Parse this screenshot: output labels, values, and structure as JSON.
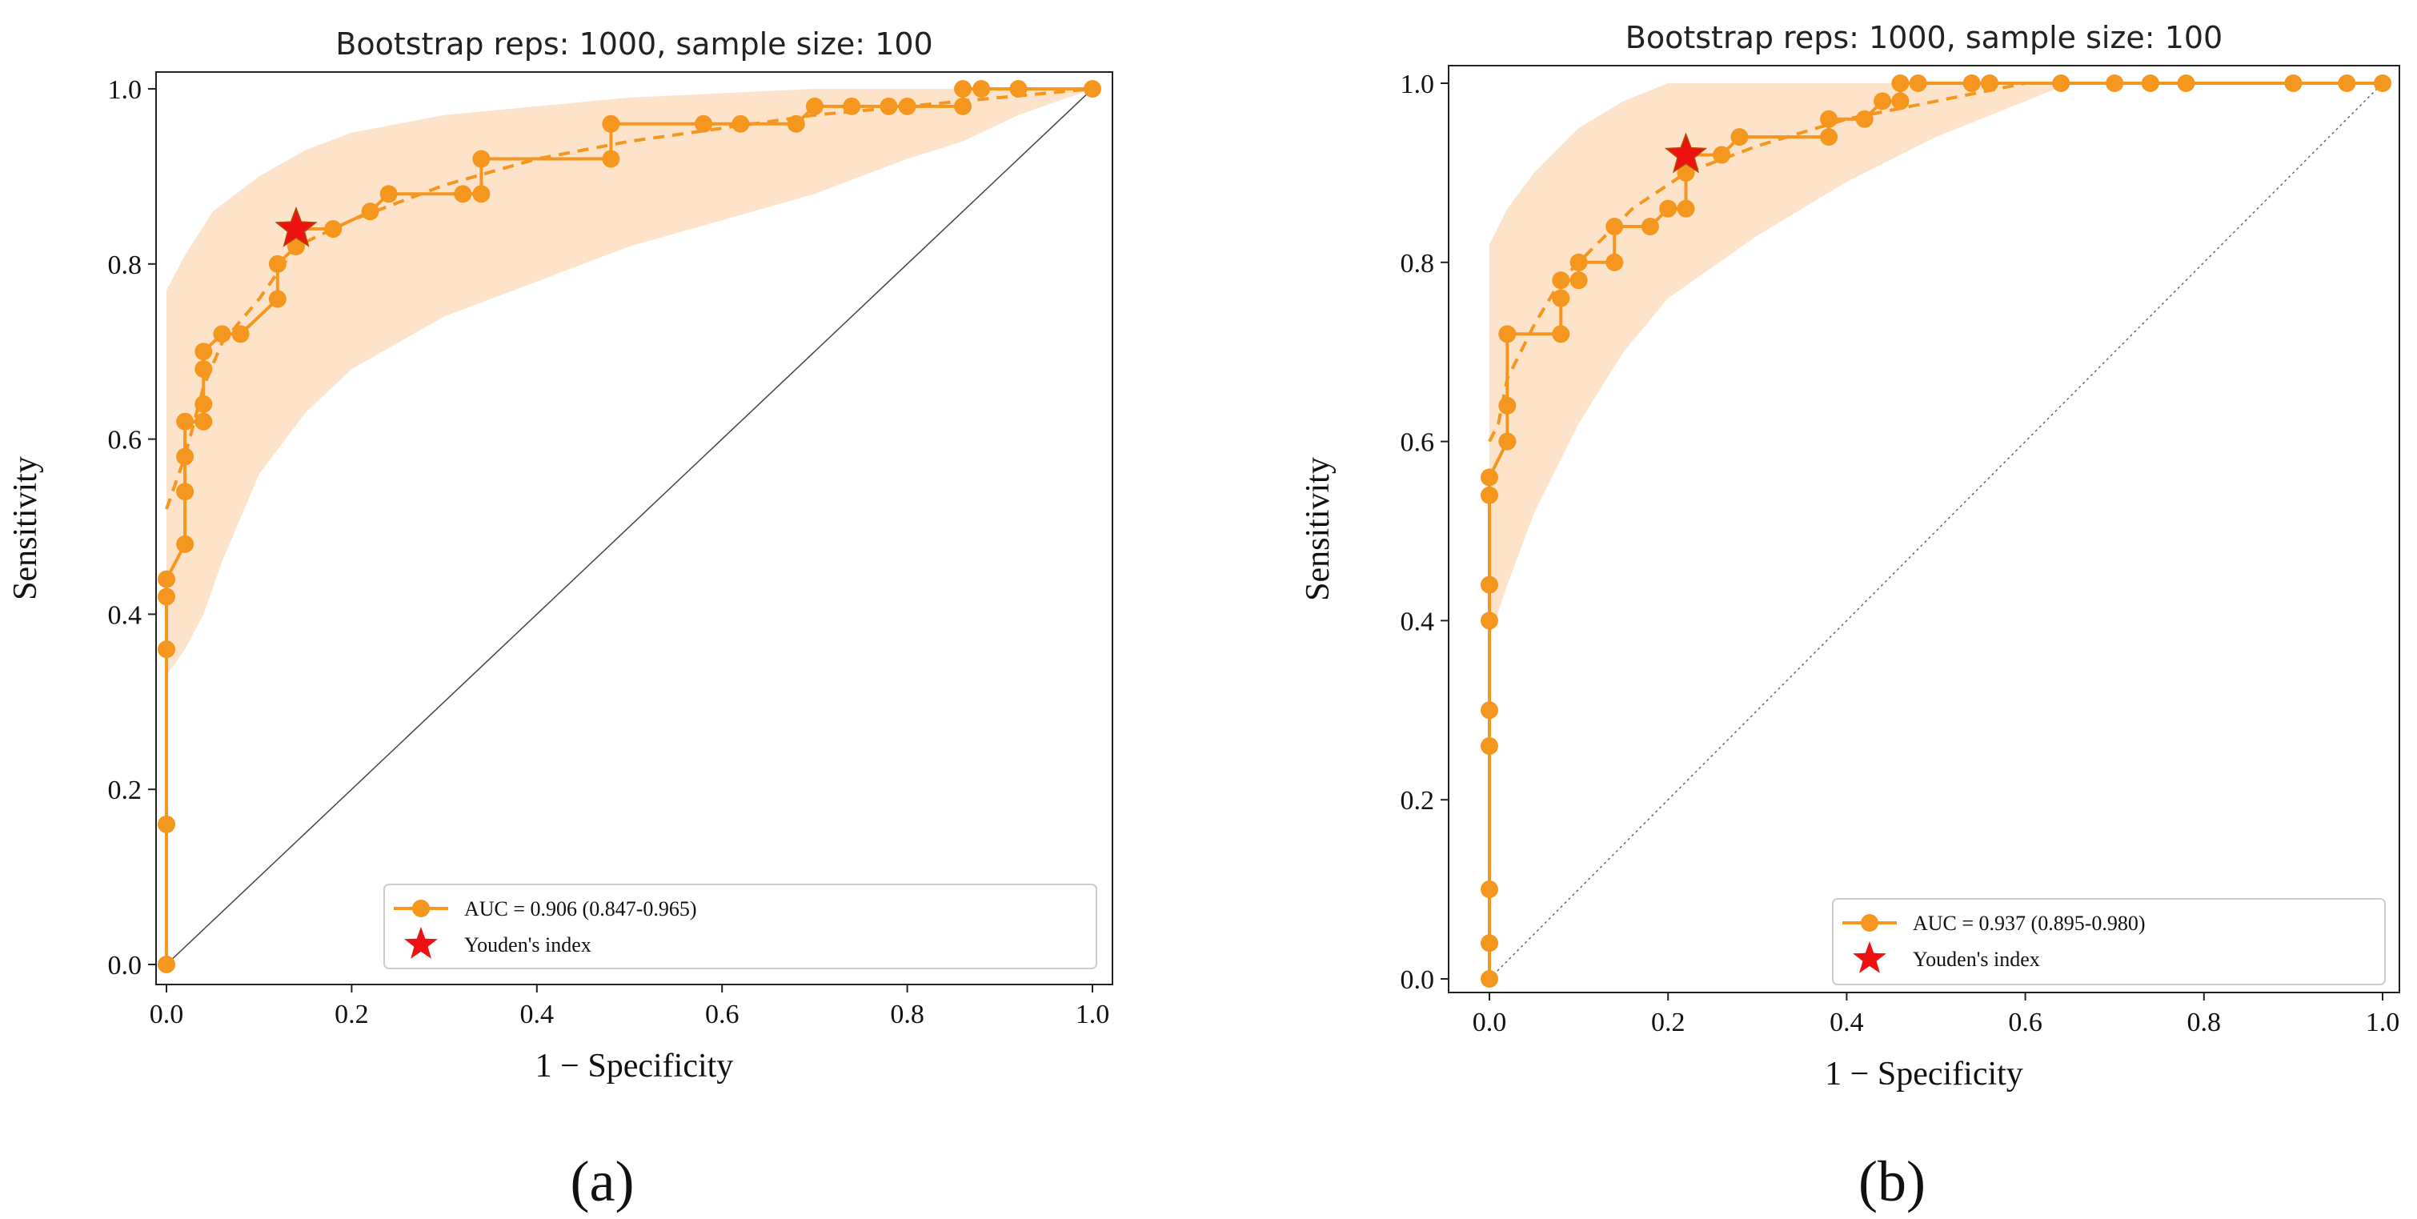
{
  "chart_data": [
    {
      "panel": "(a)",
      "type": "line",
      "title": "Bootstrap reps: 1000, sample size: 100",
      "xlabel": "1 − Specificity",
      "ylabel": "Sensitivity",
      "xlim": [
        0,
        1
      ],
      "ylim": [
        0,
        1
      ],
      "xticks": [
        "0.0",
        "0.2",
        "0.4",
        "0.6",
        "0.8",
        "1.0"
      ],
      "yticks": [
        "0.0",
        "0.2",
        "0.4",
        "0.6",
        "0.8",
        "1.0"
      ],
      "grid": false,
      "legend_position": "bottom-right",
      "legend": {
        "auc_label": "AUC = 0.906 (0.847-0.965)",
        "youden_label": "Youden's index"
      },
      "colors": {
        "line": "#f5961e",
        "band": "#fbdcbc",
        "star": "#ee1111",
        "diagonal": "#444444"
      },
      "roc_points": [
        [
          0,
          0
        ],
        [
          0,
          0.16
        ],
        [
          0,
          0.36
        ],
        [
          0,
          0.42
        ],
        [
          0,
          0.44
        ],
        [
          0.02,
          0.48
        ],
        [
          0.02,
          0.54
        ],
        [
          0.02,
          0.58
        ],
        [
          0.02,
          0.62
        ],
        [
          0.04,
          0.62
        ],
        [
          0.04,
          0.64
        ],
        [
          0.04,
          0.68
        ],
        [
          0.04,
          0.7
        ],
        [
          0.06,
          0.72
        ],
        [
          0.08,
          0.72
        ],
        [
          0.12,
          0.76
        ],
        [
          0.12,
          0.8
        ],
        [
          0.14,
          0.82
        ],
        [
          0.14,
          0.84
        ],
        [
          0.18,
          0.84
        ],
        [
          0.22,
          0.86
        ],
        [
          0.24,
          0.88
        ],
        [
          0.32,
          0.88
        ],
        [
          0.34,
          0.88
        ],
        [
          0.34,
          0.92
        ],
        [
          0.48,
          0.92
        ],
        [
          0.48,
          0.96
        ],
        [
          0.58,
          0.96
        ],
        [
          0.62,
          0.96
        ],
        [
          0.68,
          0.96
        ],
        [
          0.7,
          0.98
        ],
        [
          0.74,
          0.98
        ],
        [
          0.78,
          0.98
        ],
        [
          0.8,
          0.98
        ],
        [
          0.86,
          0.98
        ],
        [
          0.86,
          1.0
        ],
        [
          0.88,
          1.0
        ],
        [
          0.92,
          1.0
        ],
        [
          1.0,
          1.0
        ]
      ],
      "mean_curve": [
        [
          0,
          0.52
        ],
        [
          0.02,
          0.58
        ],
        [
          0.04,
          0.66
        ],
        [
          0.06,
          0.71
        ],
        [
          0.1,
          0.76
        ],
        [
          0.14,
          0.82
        ],
        [
          0.2,
          0.85
        ],
        [
          0.3,
          0.89
        ],
        [
          0.4,
          0.92
        ],
        [
          0.5,
          0.94
        ],
        [
          0.6,
          0.955
        ],
        [
          0.7,
          0.97
        ],
        [
          0.8,
          0.98
        ],
        [
          0.9,
          0.99
        ],
        [
          1.0,
          1.0
        ]
      ],
      "ci_upper": [
        [
          0,
          0.77
        ],
        [
          0.02,
          0.81
        ],
        [
          0.05,
          0.86
        ],
        [
          0.1,
          0.9
        ],
        [
          0.15,
          0.93
        ],
        [
          0.2,
          0.95
        ],
        [
          0.3,
          0.97
        ],
        [
          0.4,
          0.98
        ],
        [
          0.5,
          0.99
        ],
        [
          0.6,
          0.995
        ],
        [
          0.7,
          1.0
        ],
        [
          1.0,
          1.0
        ]
      ],
      "ci_lower": [
        [
          0,
          0.33
        ],
        [
          0.02,
          0.36
        ],
        [
          0.04,
          0.4
        ],
        [
          0.06,
          0.46
        ],
        [
          0.1,
          0.56
        ],
        [
          0.15,
          0.63
        ],
        [
          0.2,
          0.68
        ],
        [
          0.3,
          0.74
        ],
        [
          0.4,
          0.78
        ],
        [
          0.5,
          0.82
        ],
        [
          0.6,
          0.85
        ],
        [
          0.7,
          0.88
        ],
        [
          0.8,
          0.92
        ],
        [
          0.86,
          0.94
        ],
        [
          0.92,
          0.97
        ],
        [
          1.0,
          1.0
        ]
      ],
      "youden_point": [
        0.14,
        0.84
      ]
    },
    {
      "panel": "(b)",
      "type": "line",
      "title": "Bootstrap reps: 1000, sample size: 100",
      "xlabel": "1 − Specificity",
      "ylabel": "Sensitivity",
      "xlim": [
        0,
        1
      ],
      "ylim": [
        0,
        1
      ],
      "xticks": [
        "0.0",
        "0.2",
        "0.4",
        "0.6",
        "0.8",
        "1.0"
      ],
      "yticks": [
        "0.0",
        "0.2",
        "0.4",
        "0.6",
        "0.8",
        "1.0"
      ],
      "grid": false,
      "legend_position": "bottom-right",
      "legend": {
        "auc_label": "AUC = 0.937 (0.895-0.980)",
        "youden_label": "Youden's index"
      },
      "colors": {
        "line": "#f5961e",
        "band": "#fbdcbc",
        "star": "#ee1111",
        "diagonal": "#666666"
      },
      "roc_points": [
        [
          0,
          0
        ],
        [
          0,
          0.04
        ],
        [
          0,
          0.1
        ],
        [
          0,
          0.26
        ],
        [
          0,
          0.3
        ],
        [
          0,
          0.4
        ],
        [
          0,
          0.44
        ],
        [
          0,
          0.54
        ],
        [
          0,
          0.56
        ],
        [
          0.02,
          0.6
        ],
        [
          0.02,
          0.64
        ],
        [
          0.02,
          0.72
        ],
        [
          0.08,
          0.72
        ],
        [
          0.08,
          0.76
        ],
        [
          0.08,
          0.78
        ],
        [
          0.1,
          0.78
        ],
        [
          0.1,
          0.8
        ],
        [
          0.14,
          0.8
        ],
        [
          0.14,
          0.84
        ],
        [
          0.18,
          0.84
        ],
        [
          0.2,
          0.86
        ],
        [
          0.22,
          0.86
        ],
        [
          0.22,
          0.9
        ],
        [
          0.22,
          0.92
        ],
        [
          0.26,
          0.92
        ],
        [
          0.28,
          0.94
        ],
        [
          0.38,
          0.94
        ],
        [
          0.38,
          0.96
        ],
        [
          0.42,
          0.96
        ],
        [
          0.44,
          0.98
        ],
        [
          0.46,
          0.98
        ],
        [
          0.46,
          1.0
        ],
        [
          0.48,
          1.0
        ],
        [
          0.54,
          1.0
        ],
        [
          0.56,
          1.0
        ],
        [
          0.64,
          1.0
        ],
        [
          0.7,
          1.0
        ],
        [
          0.74,
          1.0
        ],
        [
          0.78,
          1.0
        ],
        [
          0.9,
          1.0
        ],
        [
          0.96,
          1.0
        ],
        [
          1.0,
          1.0
        ]
      ],
      "mean_curve": [
        [
          0,
          0.6
        ],
        [
          0.01,
          0.62
        ],
        [
          0.02,
          0.67
        ],
        [
          0.05,
          0.73
        ],
        [
          0.08,
          0.78
        ],
        [
          0.12,
          0.82
        ],
        [
          0.16,
          0.86
        ],
        [
          0.22,
          0.9
        ],
        [
          0.3,
          0.93
        ],
        [
          0.4,
          0.96
        ],
        [
          0.5,
          0.98
        ],
        [
          0.6,
          1.0
        ],
        [
          1.0,
          1.0
        ]
      ],
      "ci_upper": [
        [
          0,
          0.82
        ],
        [
          0.02,
          0.86
        ],
        [
          0.05,
          0.9
        ],
        [
          0.1,
          0.95
        ],
        [
          0.15,
          0.98
        ],
        [
          0.2,
          1.0
        ],
        [
          1.0,
          1.0
        ]
      ],
      "ci_lower": [
        [
          0,
          0.38
        ],
        [
          0.02,
          0.44
        ],
        [
          0.05,
          0.52
        ],
        [
          0.1,
          0.62
        ],
        [
          0.15,
          0.7
        ],
        [
          0.2,
          0.76
        ],
        [
          0.3,
          0.83
        ],
        [
          0.4,
          0.89
        ],
        [
          0.5,
          0.94
        ],
        [
          0.6,
          0.98
        ],
        [
          0.65,
          1.0
        ],
        [
          1.0,
          1.0
        ]
      ],
      "youden_point": [
        0.22,
        0.92
      ]
    }
  ]
}
